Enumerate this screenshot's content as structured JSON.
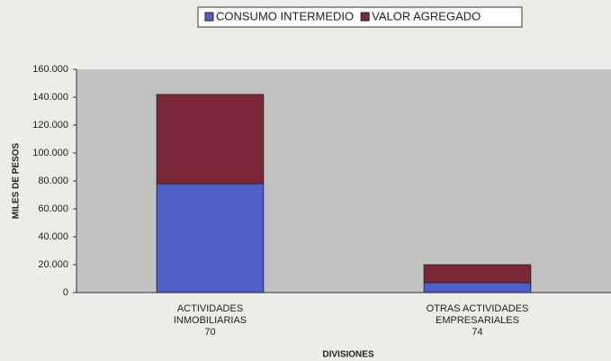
{
  "chart_data": {
    "type": "stacked_bar",
    "categories": [
      [
        "ACTIVIDADES",
        "INMOBILIARIAS",
        "70"
      ],
      [
        "OTRAS ACTIVIDADES",
        "EMPRESARIALES",
        "74"
      ]
    ],
    "series": [
      {
        "name": "CONSUMO INTERMEDIO",
        "color": "#4f5fc9",
        "values": [
          78000,
          7000
        ]
      },
      {
        "name": "VALOR AGREGADO",
        "color": "#7a2838",
        "values": [
          64000,
          13000
        ]
      }
    ],
    "ylim": [
      0,
      160000
    ],
    "yticks": [
      0,
      {
        "value": 20000,
        "label": "20.000"
      },
      {
        "value": 40000,
        "label": "40.000"
      },
      {
        "value": 60000,
        "label": "60.000"
      },
      {
        "value": 80000,
        "label": "80.000"
      },
      {
        "value": 100000,
        "label": "100.000"
      },
      {
        "value": 120000,
        "label": "120.000"
      },
      {
        "value": 140000,
        "label": "140.000"
      },
      {
        "value": 160000,
        "label": "160.000"
      }
    ],
    "y_label": "MILES DE PESOS",
    "x_label": "DIVISIONES",
    "grid": false,
    "legend": "top"
  }
}
